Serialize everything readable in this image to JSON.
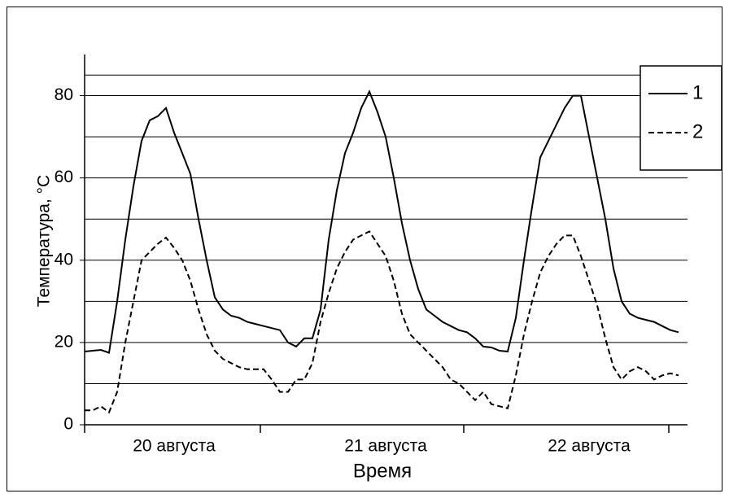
{
  "chart_data": {
    "type": "line",
    "y_label": "Температура, °C",
    "x_label": "Время",
    "categories": [
      null,
      null,
      null,
      null,
      null,
      null,
      null,
      null,
      null,
      null,
      null,
      "20 августа",
      null,
      null,
      null,
      null,
      null,
      null,
      null,
      null,
      null,
      null,
      null,
      null,
      null,
      null,
      null,
      null,
      null,
      null,
      null,
      null,
      null,
      null,
      null,
      null,
      null,
      "21 августа",
      null,
      null,
      null,
      null,
      null,
      null,
      null,
      null,
      null,
      null,
      null,
      null,
      null,
      null,
      null,
      null,
      null,
      null,
      null,
      null,
      null,
      null,
      null,
      null,
      "22 августа",
      null,
      null,
      null,
      null,
      null,
      null,
      null,
      null,
      null,
      null,
      null
    ],
    "series": [
      {
        "name": "1",
        "color": "#000000",
        "dash": "solid",
        "values": [
          17.8,
          18,
          18.2,
          17.5,
          30,
          45,
          58,
          69,
          74,
          75,
          77,
          71,
          66,
          61,
          50,
          40,
          31,
          28,
          26.5,
          26,
          25,
          24.5,
          24,
          23.5,
          23,
          20,
          19,
          21,
          21,
          28,
          45,
          57,
          66,
          71,
          77,
          81,
          76,
          70,
          60,
          49,
          40,
          33,
          28,
          26.5,
          25,
          24,
          23,
          22.5,
          21,
          19,
          18.8,
          18,
          17.8,
          26,
          40,
          53,
          65,
          69,
          73,
          77,
          80,
          80,
          70,
          60,
          50,
          38,
          30,
          27,
          26,
          25.5,
          25,
          24,
          23,
          22.5
        ]
      },
      {
        "name": "2",
        "color": "#000000",
        "dash": "dashed",
        "values": [
          3.5,
          3.5,
          4.5,
          3,
          8,
          20,
          30,
          40,
          42,
          44,
          45.5,
          43,
          40,
          35,
          28,
          22,
          18,
          16,
          15,
          14,
          13.5,
          13.5,
          13.5,
          11,
          8,
          8,
          11,
          11,
          15,
          25,
          32,
          38,
          42,
          45,
          46,
          47,
          44,
          41,
          35,
          27,
          22,
          20,
          18,
          16,
          14,
          11,
          10,
          8,
          6,
          8,
          5,
          4.5,
          4,
          12,
          22,
          30,
          37,
          41,
          44,
          46,
          46,
          41,
          35,
          29,
          21,
          14,
          11,
          13,
          14,
          13,
          11,
          12,
          12.5,
          12
        ]
      }
    ],
    "ylim": [
      0,
      90
    ],
    "yticks": [
      0,
      20,
      40,
      60,
      80
    ],
    "grid": true,
    "legend": "upper right"
  }
}
